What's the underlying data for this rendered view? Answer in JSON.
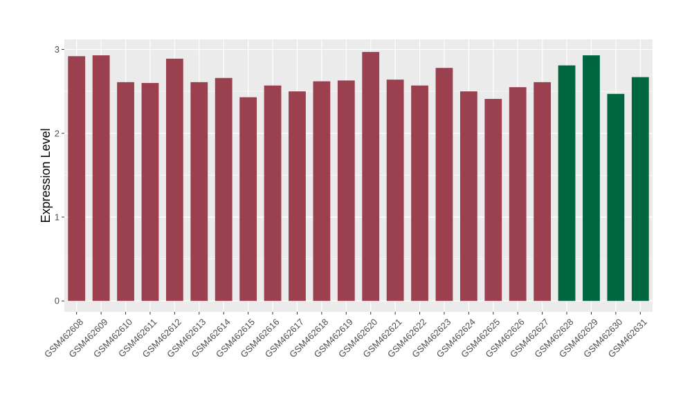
{
  "chart_data": {
    "type": "bar",
    "title": "",
    "xlabel": "",
    "ylabel": "Expression Level",
    "ylim": [
      -0.13,
      3.12
    ],
    "yticks": [
      0,
      1,
      2,
      3
    ],
    "grid": true,
    "legend": "none",
    "categories": [
      "GSM462608",
      "GSM462609",
      "GSM462610",
      "GSM462611",
      "GSM462612",
      "GSM462613",
      "GSM462614",
      "GSM462615",
      "GSM462616",
      "GSM462617",
      "GSM462618",
      "GSM462619",
      "GSM462620",
      "GSM462621",
      "GSM462622",
      "GSM462623",
      "GSM462624",
      "GSM462625",
      "GSM462626",
      "GSM462627",
      "GSM462628",
      "GSM462629",
      "GSM462630",
      "GSM462631"
    ],
    "values": [
      2.92,
      2.93,
      2.61,
      2.6,
      2.89,
      2.61,
      2.66,
      2.43,
      2.57,
      2.5,
      2.62,
      2.63,
      2.97,
      2.64,
      2.57,
      2.78,
      2.5,
      2.41,
      2.55,
      2.61,
      2.81,
      2.93,
      2.47,
      2.67
    ],
    "groups": [
      "a",
      "a",
      "a",
      "a",
      "a",
      "a",
      "a",
      "a",
      "a",
      "a",
      "a",
      "a",
      "a",
      "a",
      "a",
      "a",
      "a",
      "a",
      "a",
      "a",
      "b",
      "b",
      "b",
      "b"
    ],
    "colors": {
      "a": "#9a404f",
      "b": "#00663f",
      "panel": "#ebebeb",
      "grid": "#ffffff"
    }
  }
}
